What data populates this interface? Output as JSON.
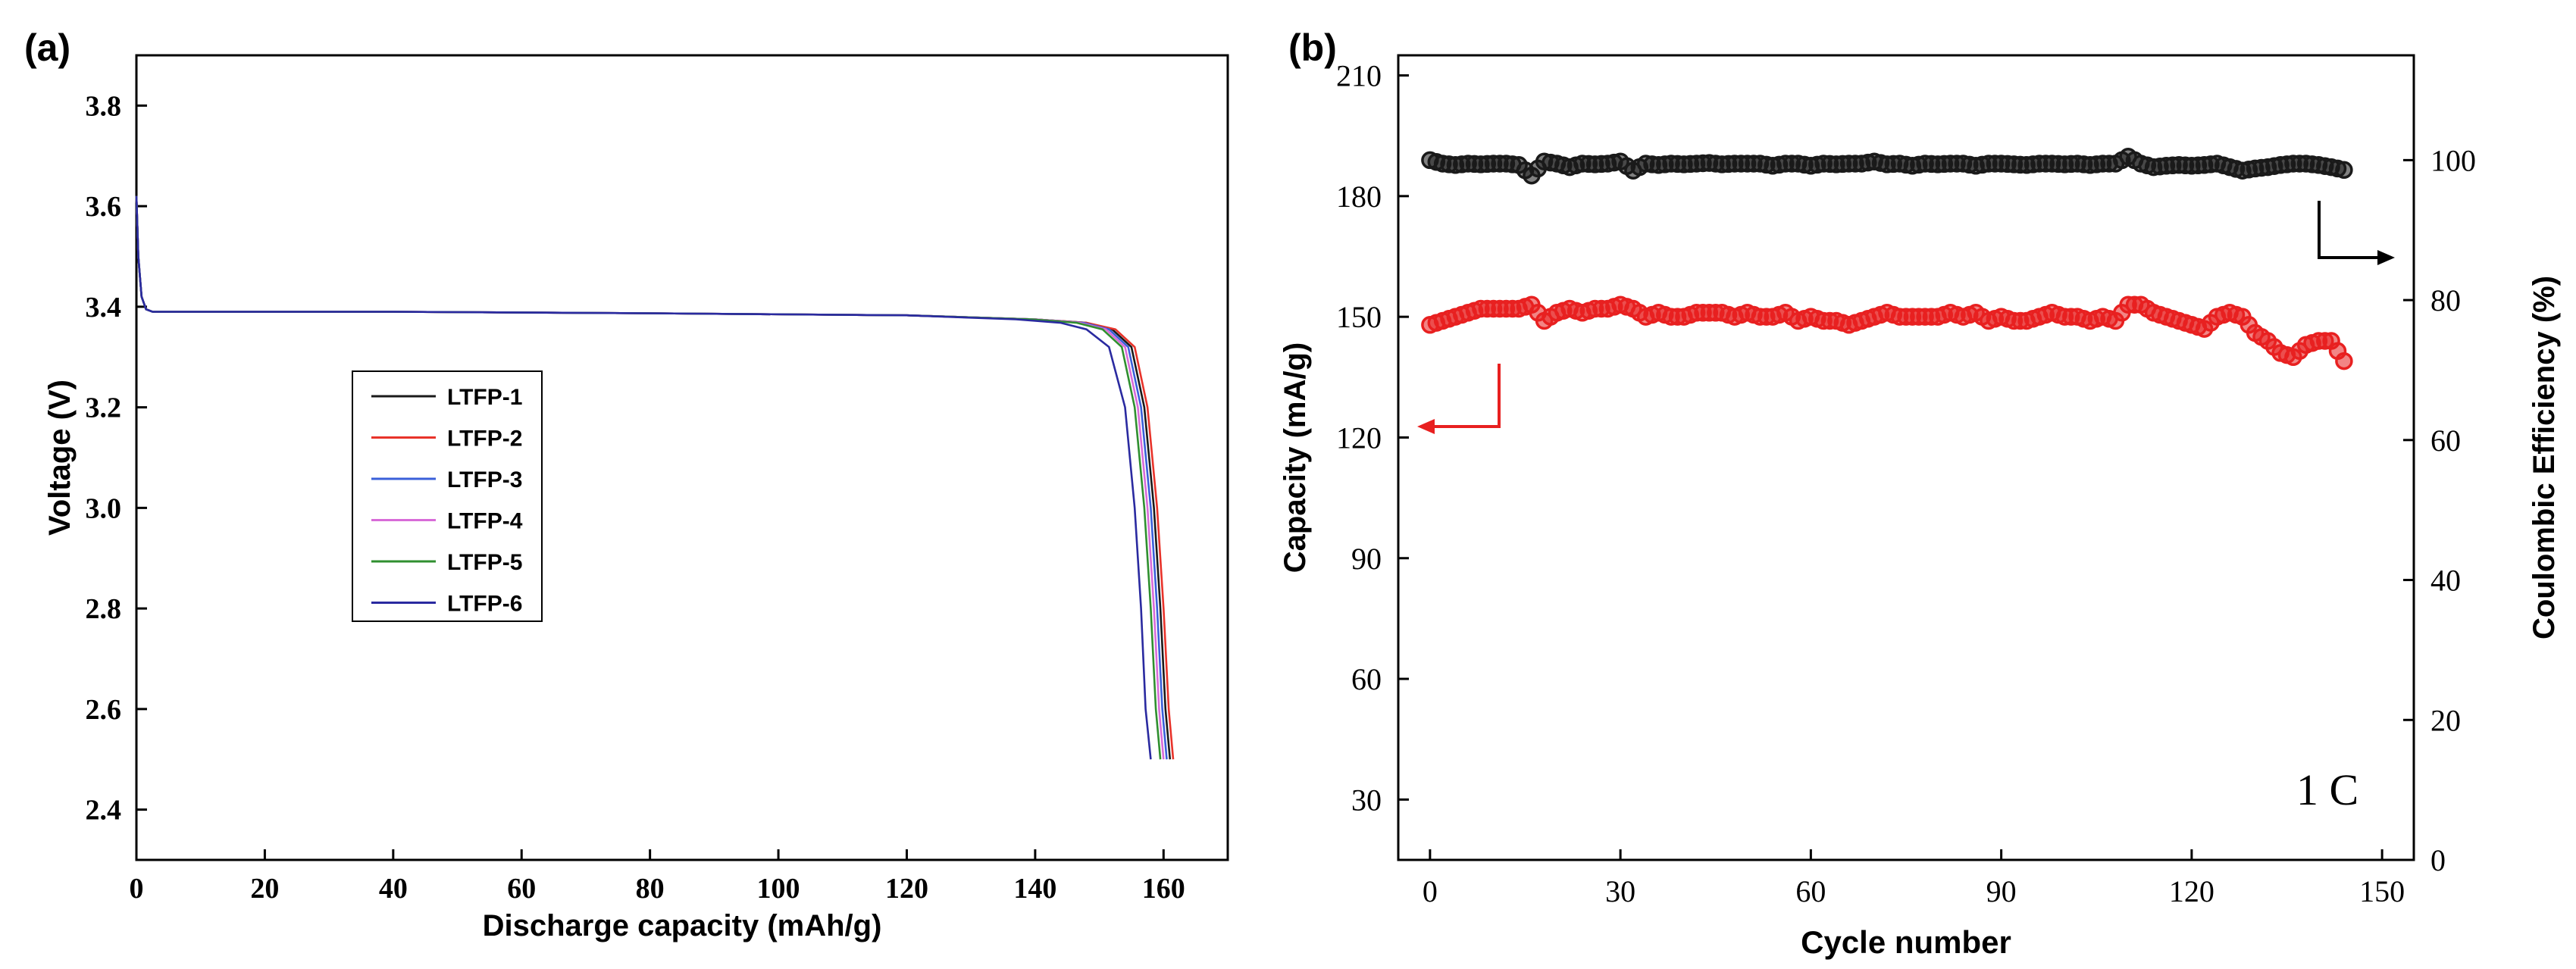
{
  "colors": {
    "axis": "#000000",
    "LTFP-1": "#1a1a1a",
    "LTFP-2": "#e8332a",
    "LTFP-3": "#3a5fd9",
    "LTFP-4": "#d86bd8",
    "LTFP-5": "#2f8f2f",
    "LTFP-6": "#2a2aa0",
    "capacity": "#e82020",
    "efficiency": "#1a1a1a"
  },
  "chart_data": [
    {
      "panel_label": "(a)",
      "type": "line",
      "title": "",
      "xlabel": "Discharge capacity (mAh/g)",
      "ylabel": "Voltage (V)",
      "xlim": [
        0,
        170
      ],
      "ylim": [
        2.3,
        3.9
      ],
      "xticks": [
        0,
        20,
        40,
        60,
        80,
        100,
        120,
        140,
        160
      ],
      "yticks": [
        2.4,
        2.6,
        2.8,
        3.0,
        3.2,
        3.4,
        3.6,
        3.8
      ],
      "xtick_labels": [
        "0",
        "20",
        "40",
        "60",
        "80",
        "100",
        "120",
        "140",
        "160"
      ],
      "ytick_labels": [
        "2.4",
        "2.6",
        "2.8",
        "3.0",
        "3.2",
        "3.4",
        "3.6",
        "3.8"
      ],
      "legend_position": "middle-left",
      "series": [
        {
          "name": "LTFP-1",
          "x": [
            0,
            0.3,
            0.8,
            1.5,
            2.5,
            5,
            40,
            80,
            120,
            140,
            148,
            152,
            155,
            157,
            158.5,
            159.5,
            160.3,
            161
          ],
          "y": [
            3.62,
            3.5,
            3.42,
            3.395,
            3.39,
            3.39,
            3.39,
            3.387,
            3.383,
            3.375,
            3.368,
            3.355,
            3.32,
            3.2,
            3.0,
            2.8,
            2.6,
            2.5
          ]
        },
        {
          "name": "LTFP-2",
          "x": [
            0,
            0.3,
            0.8,
            1.5,
            2.5,
            5,
            40,
            80,
            120,
            140,
            148,
            152.5,
            155.5,
            157.5,
            159,
            160,
            160.8,
            161.5
          ],
          "y": [
            3.62,
            3.5,
            3.42,
            3.395,
            3.39,
            3.39,
            3.39,
            3.387,
            3.383,
            3.375,
            3.368,
            3.355,
            3.32,
            3.2,
            3.0,
            2.8,
            2.6,
            2.5
          ]
        },
        {
          "name": "LTFP-3",
          "x": [
            0,
            0.3,
            0.8,
            1.5,
            2.5,
            5,
            40,
            80,
            120,
            140,
            147.5,
            151.5,
            154.5,
            156.5,
            158,
            159,
            159.8,
            160.5
          ],
          "y": [
            3.62,
            3.5,
            3.42,
            3.395,
            3.39,
            3.39,
            3.39,
            3.387,
            3.383,
            3.375,
            3.368,
            3.355,
            3.32,
            3.2,
            3.0,
            2.8,
            2.6,
            2.5
          ]
        },
        {
          "name": "LTFP-4",
          "x": [
            0,
            0.3,
            0.8,
            1.5,
            2.5,
            5,
            40,
            80,
            120,
            140,
            147,
            151,
            154,
            156,
            157.5,
            158.5,
            159.3,
            160
          ],
          "y": [
            3.62,
            3.5,
            3.42,
            3.395,
            3.39,
            3.39,
            3.39,
            3.387,
            3.383,
            3.375,
            3.368,
            3.355,
            3.32,
            3.2,
            3.0,
            2.8,
            2.6,
            2.5
          ]
        },
        {
          "name": "LTFP-5",
          "x": [
            0,
            0.3,
            0.8,
            1.5,
            2.5,
            5,
            40,
            80,
            120,
            139.5,
            146.5,
            150.5,
            153.5,
            155.5,
            157,
            158,
            158.8,
            159.5
          ],
          "y": [
            3.62,
            3.5,
            3.42,
            3.395,
            3.39,
            3.39,
            3.39,
            3.387,
            3.383,
            3.375,
            3.368,
            3.355,
            3.32,
            3.2,
            3.0,
            2.8,
            2.6,
            2.5
          ]
        },
        {
          "name": "LTFP-6",
          "x": [
            0,
            0.3,
            0.8,
            1.5,
            2.5,
            5,
            40,
            80,
            120,
            137,
            144,
            148,
            151.5,
            154,
            155.5,
            156.5,
            157.2,
            158
          ],
          "y": [
            3.62,
            3.5,
            3.42,
            3.395,
            3.39,
            3.39,
            3.39,
            3.387,
            3.383,
            3.375,
            3.368,
            3.355,
            3.32,
            3.2,
            3.0,
            2.8,
            2.6,
            2.5
          ]
        }
      ]
    },
    {
      "panel_label": "(b)",
      "type": "scatter",
      "title": "",
      "xlabel": "Cycle number",
      "ylabel": "Capacity (mA/g)",
      "y2label": "Coulombic Efficiency (%)",
      "annotation": "1 C",
      "xlim": [
        -5,
        155
      ],
      "ylim": [
        15,
        215
      ],
      "y2lim": [
        0,
        110
      ],
      "xticks": [
        0,
        30,
        60,
        90,
        120,
        150
      ],
      "yticks": [
        30,
        60,
        90,
        120,
        150,
        180,
        210
      ],
      "y2ticks": [
        0,
        20,
        40,
        60,
        80,
        100
      ],
      "xtick_labels": [
        "0",
        "30",
        "60",
        "90",
        "120",
        "150"
      ],
      "ytick_labels": [
        "30",
        "60",
        "90",
        "120",
        "150",
        "180",
        "210"
      ],
      "y2tick_labels": [
        "0",
        "20",
        "40",
        "60",
        "80",
        "100"
      ],
      "series": [
        {
          "name": "Capacity",
          "axis": "left",
          "x": [
            0,
            2,
            4,
            6,
            8,
            10,
            12,
            14,
            16,
            18,
            20,
            22,
            24,
            26,
            28,
            30,
            32,
            34,
            36,
            38,
            40,
            42,
            44,
            46,
            48,
            50,
            52,
            54,
            56,
            58,
            60,
            62,
            64,
            66,
            68,
            70,
            72,
            74,
            76,
            78,
            80,
            82,
            84,
            86,
            88,
            90,
            92,
            94,
            96,
            98,
            100,
            102,
            104,
            106,
            108,
            110,
            112,
            114,
            116,
            118,
            120,
            122,
            124,
            126,
            128,
            130,
            132,
            134,
            136,
            138,
            140,
            142,
            144
          ],
          "y": [
            148,
            149,
            150,
            151,
            152,
            152,
            152,
            152,
            153,
            149,
            151,
            152,
            151,
            152,
            152,
            153,
            152,
            150,
            151,
            150,
            150,
            151,
            151,
            151,
            150,
            151,
            150,
            150,
            151,
            149,
            150,
            149,
            149,
            148,
            149,
            150,
            151,
            150,
            150,
            150,
            150,
            151,
            150,
            151,
            149,
            150,
            149,
            149,
            150,
            151,
            150,
            150,
            149,
            150,
            149,
            153,
            153,
            151,
            150,
            149,
            148,
            147,
            150,
            151,
            150,
            146,
            144,
            141,
            140,
            143,
            144,
            144,
            139
          ]
        },
        {
          "name": "Coulombic Efficiency",
          "axis": "right",
          "x": [
            0,
            2,
            4,
            6,
            8,
            10,
            12,
            14,
            16,
            18,
            20,
            22,
            24,
            26,
            28,
            30,
            32,
            34,
            36,
            38,
            40,
            42,
            44,
            46,
            48,
            50,
            52,
            54,
            56,
            58,
            60,
            62,
            64,
            66,
            68,
            70,
            72,
            74,
            76,
            78,
            80,
            82,
            84,
            86,
            88,
            90,
            92,
            94,
            96,
            98,
            100,
            102,
            104,
            106,
            108,
            110,
            112,
            114,
            116,
            118,
            120,
            122,
            124,
            126,
            128,
            130,
            132,
            134,
            136,
            138,
            140,
            142,
            144
          ],
          "y": [
            100,
            99.5,
            99.3,
            99.5,
            99.4,
            99.5,
            99.5,
            99.3,
            97.8,
            99.8,
            99.5,
            99,
            99.5,
            99.4,
            99.5,
            99.8,
            98.5,
            99.5,
            99.3,
            99.5,
            99.4,
            99.5,
            99.6,
            99.4,
            99.5,
            99.5,
            99.5,
            99.2,
            99.5,
            99.5,
            99.2,
            99.5,
            99.4,
            99.5,
            99.5,
            99.8,
            99.4,
            99.5,
            99.2,
            99.5,
            99.4,
            99.5,
            99.5,
            99.2,
            99.5,
            99.5,
            99.4,
            99.3,
            99.5,
            99.5,
            99.4,
            99.5,
            99.3,
            99.5,
            99.5,
            100.5,
            99.5,
            99,
            99.2,
            99.3,
            99.2,
            99.3,
            99.5,
            99,
            98.5,
            98.8,
            99,
            99.3,
            99.5,
            99.5,
            99.3,
            99,
            98.6
          ]
        }
      ]
    }
  ]
}
